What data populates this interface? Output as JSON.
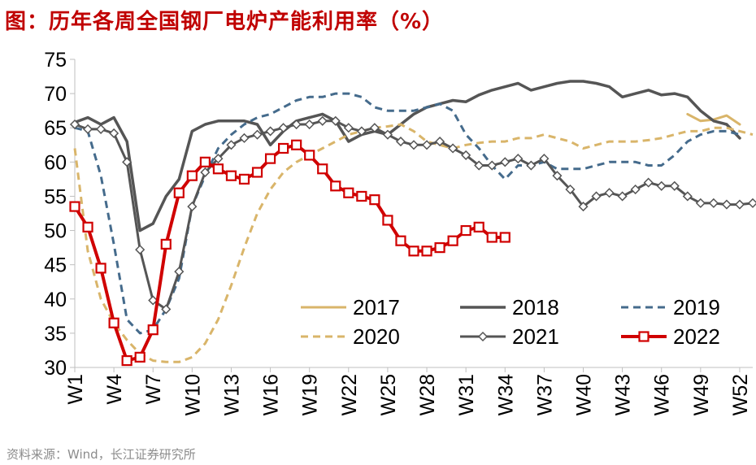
{
  "title": "图：历年各周全国钢厂电炉产能利用率（%）",
  "source": "资料来源：Wind，长江证券研究所",
  "chart_data": {
    "type": "line",
    "ylim": [
      30,
      75
    ],
    "yticks": [
      30,
      35,
      40,
      45,
      50,
      55,
      60,
      65,
      70,
      75
    ],
    "x_tick_labels": [
      "W1",
      "W4",
      "W7",
      "W10",
      "W13",
      "W16",
      "W19",
      "W22",
      "W25",
      "W28",
      "W31",
      "W34",
      "W37",
      "W40",
      "W43",
      "W46",
      "W49",
      "W52"
    ],
    "x_tick_weeks": [
      1,
      4,
      7,
      10,
      13,
      16,
      19,
      22,
      25,
      28,
      31,
      34,
      37,
      40,
      43,
      46,
      49,
      52
    ],
    "x_range": [
      1,
      53
    ],
    "legend_placement": "bottom-right",
    "series": [
      {
        "name": "2017",
        "color": "#d9b56a",
        "style": "solid",
        "marker": "none",
        "width": 3,
        "x": [
          48,
          49,
          50,
          51,
          52
        ],
        "y": [
          67.0,
          66.0,
          66.2,
          66.8,
          65.5
        ]
      },
      {
        "name": "2018",
        "color": "#555555",
        "style": "solid",
        "marker": "none",
        "width": 3.5,
        "x": [
          1,
          2,
          3,
          4,
          5,
          6,
          7,
          8,
          9,
          10,
          11,
          12,
          13,
          14,
          15,
          16,
          17,
          18,
          19,
          20,
          21,
          22,
          23,
          24,
          25,
          26,
          27,
          28,
          29,
          30,
          31,
          32,
          33,
          34,
          35,
          36,
          37,
          38,
          39,
          40,
          41,
          42,
          43,
          44,
          45,
          46,
          47,
          48,
          49,
          50,
          51,
          52
        ],
        "y": [
          65.8,
          66.5,
          65.5,
          66.5,
          63.0,
          50.0,
          51.0,
          55.0,
          57.5,
          64.5,
          65.5,
          66.0,
          66.0,
          66.0,
          65.5,
          62.5,
          64.5,
          66.0,
          66.5,
          67.0,
          66.0,
          63.0,
          64.0,
          64.5,
          64.0,
          65.5,
          67.0,
          68.0,
          68.5,
          69.0,
          68.8,
          69.8,
          70.5,
          71.0,
          71.5,
          70.5,
          71.0,
          71.5,
          71.8,
          71.8,
          71.5,
          71.0,
          69.5,
          70.0,
          70.5,
          69.8,
          70.0,
          69.5,
          67.5,
          66.0,
          65.5,
          63.5
        ]
      },
      {
        "name": "2019",
        "color": "#456b8c",
        "style": "dashed",
        "marker": "none",
        "width": 3,
        "x": [
          1,
          2,
          3,
          4,
          5,
          6,
          7,
          8,
          9,
          10,
          11,
          12,
          13,
          14,
          15,
          16,
          17,
          18,
          19,
          20,
          21,
          22,
          23,
          24,
          25,
          26,
          27,
          28,
          29,
          30,
          31,
          32,
          33,
          34,
          35,
          36,
          37,
          38,
          39,
          40,
          41,
          42,
          43,
          44,
          45,
          46,
          47,
          48,
          49,
          50,
          51,
          52
        ],
        "y": [
          65.0,
          64.5,
          58.0,
          48.0,
          37.0,
          35.0,
          35.5,
          38.5,
          43.0,
          53.5,
          58.0,
          62.0,
          64.0,
          65.5,
          66.5,
          67.0,
          68.0,
          69.0,
          69.5,
          69.5,
          70.0,
          70.0,
          69.5,
          68.0,
          67.5,
          67.5,
          67.5,
          68.0,
          68.5,
          67.5,
          64.0,
          62.0,
          59.5,
          57.5,
          59.5,
          59.5,
          60.0,
          59.0,
          59.0,
          59.0,
          59.5,
          60.0,
          60.0,
          60.0,
          59.5,
          59.5,
          61.0,
          63.0,
          64.0,
          64.5,
          64.5,
          64.0
        ]
      },
      {
        "name": "2020",
        "color": "#d9b56a",
        "style": "dashed",
        "marker": "none",
        "width": 3,
        "x": [
          1,
          2,
          3,
          4,
          5,
          6,
          7,
          8,
          9,
          10,
          11,
          12,
          13,
          14,
          15,
          16,
          17,
          18,
          19,
          20,
          21,
          22,
          23,
          24,
          25,
          26,
          27,
          28,
          29,
          30,
          31,
          32,
          33,
          34,
          35,
          36,
          37,
          38,
          39,
          40,
          41,
          42,
          43,
          44,
          45,
          46,
          47,
          48,
          49,
          50,
          51,
          52,
          53
        ],
        "y": [
          62.0,
          47.0,
          40.0,
          36.5,
          34.0,
          32.0,
          31.0,
          30.8,
          30.8,
          31.5,
          33.5,
          37.0,
          42.0,
          47.5,
          52.5,
          56.0,
          58.5,
          60.0,
          61.0,
          62.0,
          63.0,
          64.0,
          64.5,
          65.0,
          65.2,
          65.5,
          64.5,
          63.0,
          62.5,
          62.0,
          62.5,
          62.8,
          63.0,
          63.0,
          63.5,
          63.5,
          64.0,
          63.5,
          63.0,
          62.0,
          62.5,
          63.0,
          63.0,
          63.0,
          63.2,
          63.5,
          64.0,
          64.5,
          64.5,
          65.0,
          65.0,
          64.5,
          64.0
        ]
      },
      {
        "name": "2021",
        "color": "#555555",
        "style": "solid",
        "marker": "diamond",
        "width": 3,
        "x": [
          1,
          2,
          3,
          4,
          5,
          6,
          7,
          8,
          9,
          10,
          11,
          12,
          13,
          14,
          15,
          16,
          17,
          18,
          19,
          20,
          21,
          22,
          23,
          24,
          25,
          26,
          27,
          28,
          29,
          30,
          31,
          32,
          33,
          34,
          35,
          36,
          37,
          38,
          39,
          40,
          41,
          42,
          43,
          44,
          45,
          46,
          47,
          48,
          49,
          50,
          51,
          52,
          53
        ],
        "y": [
          65.5,
          64.8,
          64.8,
          64.2,
          60.0,
          47.2,
          39.8,
          38.5,
          44.0,
          53.5,
          58.5,
          60.5,
          62.5,
          63.5,
          64.0,
          64.5,
          65.0,
          65.5,
          65.5,
          66.0,
          66.0,
          65.0,
          64.5,
          65.0,
          64.0,
          63.0,
          62.5,
          62.5,
          63.0,
          62.0,
          61.0,
          59.5,
          59.5,
          60.0,
          60.5,
          59.5,
          60.5,
          58.0,
          56.0,
          53.5,
          55.0,
          55.5,
          55.0,
          56.0,
          57.0,
          56.5,
          56.5,
          55.0,
          54.0,
          54.0,
          53.8,
          53.8,
          54.0
        ]
      },
      {
        "name": "2022",
        "color": "#d00000",
        "style": "solid",
        "marker": "square",
        "width": 4,
        "x": [
          1,
          2,
          3,
          4,
          5,
          6,
          7,
          8,
          9,
          10,
          11,
          12,
          13,
          14,
          15,
          16,
          17,
          18,
          19,
          20,
          21,
          22,
          23,
          24,
          25,
          26,
          27,
          28,
          29,
          30,
          31,
          32,
          33,
          34,
          35
        ],
        "y": [
          53.5,
          50.5,
          44.5,
          36.5,
          31.0,
          31.5,
          35.5,
          48.0,
          55.5,
          58.0,
          60.0,
          59.0,
          58.0,
          57.5,
          58.5,
          60.5,
          62.0,
          62.5,
          61.0,
          59.0,
          56.5,
          55.5,
          55.0,
          54.5,
          51.5,
          48.5,
          47.0,
          47.0,
          47.5,
          48.5,
          50.0,
          50.5,
          49.0,
          49.0,
          null
        ]
      }
    ]
  }
}
